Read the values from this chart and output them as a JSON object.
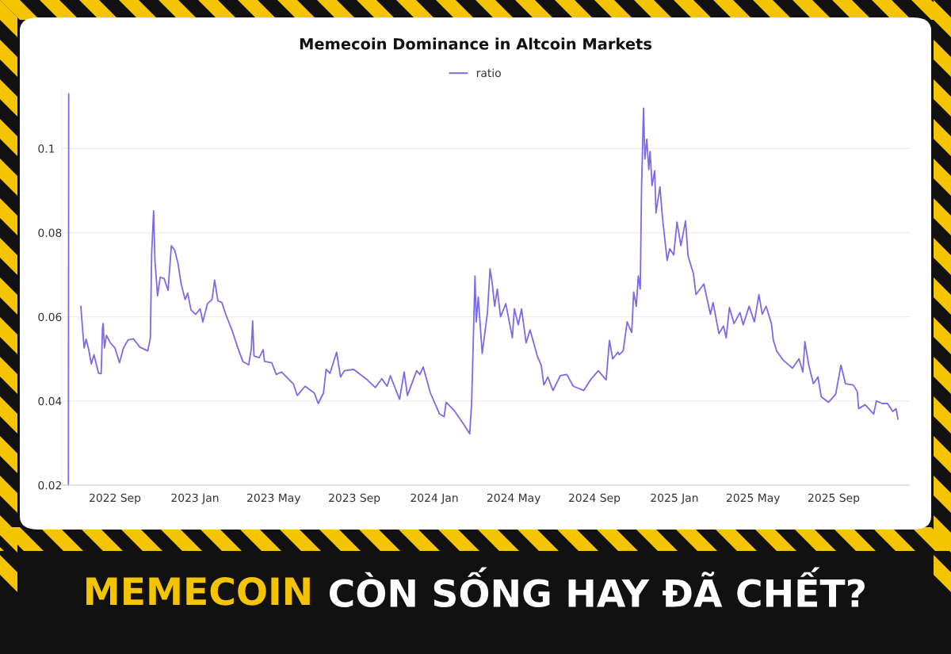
{
  "chart_data": {
    "type": "line",
    "title": "Memecoin Dominance in Altcoin Markets",
    "annotations": [
      "MEMECOIN",
      "CÒN SỐNG HAY ĐÃ CHẾT?"
    ],
    "x": [
      "2022-06-22T00:00",
      "2022-06-22T12:00",
      "2022-07-01",
      "2022-07-11",
      "2022-07-13",
      "2022-07-16",
      "2022-07-19",
      "2022-07-23",
      "2022-07-27",
      "2022-07-31",
      "2022-08-07",
      "2022-08-11",
      "2022-08-13",
      "2022-08-14",
      "2022-08-16",
      "2022-08-19",
      "2022-08-25",
      "2022-09-01",
      "2022-09-08",
      "2022-09-14",
      "2022-09-21",
      "2022-09-29",
      "2022-10-09",
      "2022-10-21",
      "2022-10-25",
      "2022-10-27",
      "2022-10-30",
      "2022-11-01",
      "2022-11-05",
      "2022-11-09",
      "2022-11-15",
      "2022-11-21",
      "2022-11-26",
      "2022-12-01",
      "2022-12-06",
      "2022-12-11",
      "2022-12-17",
      "2022-12-21",
      "2022-12-26",
      "2023-01-02",
      "2023-01-09",
      "2023-01-13",
      "2023-01-20",
      "2023-01-27",
      "2023-01-31",
      "2023-02-05",
      "2023-02-11",
      "2023-02-17",
      "2023-02-27",
      "2023-03-07",
      "2023-03-15",
      "2023-03-24",
      "2023-03-28",
      "2023-03-30",
      "2023-04-01",
      "2023-04-09",
      "2023-04-15",
      "2023-04-17",
      "2023-04-28",
      "2023-05-05",
      "2023-05-13",
      "2023-05-23",
      "2023-05-31",
      "2023-06-06",
      "2023-06-18",
      "2023-07-02",
      "2023-07-08",
      "2023-07-16",
      "2023-07-20",
      "2023-07-26",
      "2023-08-05",
      "2023-08-11",
      "2023-08-17",
      "2023-08-31",
      "2023-09-21",
      "2023-10-03",
      "2023-10-13",
      "2023-10-21",
      "2023-10-26",
      "2023-11-09",
      "2023-11-16",
      "2023-11-21",
      "2023-12-05",
      "2023-12-10",
      "2023-12-15",
      "2023-12-26",
      "2024-01-09",
      "2024-01-16",
      "2024-01-19",
      "2024-01-31",
      "2024-02-15",
      "2024-02-24",
      "2024-02-27",
      "2024-03-03",
      "2024-03-05",
      "2024-03-08",
      "2024-03-14",
      "2024-03-22",
      "2024-03-26",
      "2024-03-29",
      "2024-04-02",
      "2024-04-06",
      "2024-04-11",
      "2024-04-19",
      "2024-04-29",
      "2024-05-02",
      "2024-05-08",
      "2024-05-13",
      "2024-05-20",
      "2024-05-26",
      "2024-06-06",
      "2024-06-12",
      "2024-06-16",
      "2024-06-22",
      "2024-06-30",
      "2024-07-11",
      "2024-07-21",
      "2024-07-31",
      "2024-08-16",
      "2024-08-26",
      "2024-09-07",
      "2024-09-19",
      "2024-09-24",
      "2024-09-29",
      "2024-10-07",
      "2024-10-09",
      "2024-10-15",
      "2024-10-21",
      "2024-10-28",
      "2024-10-31",
      "2024-11-04",
      "2024-11-07",
      "2024-11-10",
      "2024-11-12",
      "2024-11-15",
      "2024-11-17",
      "2024-11-20",
      "2024-11-23",
      "2024-11-25",
      "2024-11-28",
      "2024-12-02",
      "2024-12-04",
      "2024-12-10",
      "2024-12-14",
      "2024-12-21",
      "2024-12-25",
      "2024-12-31",
      "2025-01-05",
      "2025-01-11",
      "2025-01-18",
      "2025-01-22",
      "2025-01-30",
      "2025-02-03",
      "2025-02-15",
      "2025-02-25",
      "2025-03-01",
      "2025-03-10",
      "2025-03-17",
      "2025-03-21",
      "2025-03-26",
      "2025-04-02",
      "2025-04-11",
      "2025-04-16",
      "2025-04-25",
      "2025-05-03",
      "2025-05-10",
      "2025-05-15",
      "2025-05-21",
      "2025-05-29",
      "2025-06-01",
      "2025-06-06",
      "2025-06-16",
      "2025-06-30",
      "2025-07-10",
      "2025-07-16",
      "2025-07-19",
      "2025-07-25",
      "2025-08-01",
      "2025-08-08",
      "2025-08-13",
      "2025-08-24",
      "2025-09-04",
      "2025-09-12",
      "2025-09-19",
      "2025-10-01",
      "2025-10-07",
      "2025-10-09",
      "2025-10-19",
      "2025-11-01",
      "2025-11-05",
      "2025-11-14",
      "2025-11-22",
      "2025-11-30",
      "2025-12-05",
      "2025-12-08"
    ],
    "series": [
      {
        "name": "ratio",
        "color": "#7b6be6",
        "values": [
          0.02,
          0.113,
          null,
          0.0625,
          0.0584,
          0.0526,
          0.0547,
          0.0522,
          0.0488,
          0.051,
          0.0466,
          0.0465,
          0.0573,
          0.0584,
          0.0526,
          0.0556,
          0.0538,
          0.0526,
          0.0491,
          0.0526,
          0.0545,
          0.0548,
          0.0528,
          0.0519,
          0.055,
          0.075,
          0.0852,
          0.0734,
          0.065,
          0.0694,
          0.0691,
          0.0663,
          0.0769,
          0.0759,
          0.0728,
          0.0678,
          0.0641,
          0.0656,
          0.0616,
          0.0606,
          0.0619,
          0.0588,
          0.0631,
          0.0641,
          0.0687,
          0.0638,
          0.0634,
          0.0606,
          0.0566,
          0.0528,
          0.0494,
          0.0486,
          0.0525,
          0.059,
          0.0507,
          0.0503,
          0.0522,
          0.0494,
          0.0491,
          0.0463,
          0.0469,
          0.0453,
          0.0441,
          0.0413,
          0.0435,
          0.0419,
          0.0394,
          0.0419,
          0.0475,
          0.0466,
          0.0516,
          0.0457,
          0.0472,
          0.0475,
          0.045,
          0.0432,
          0.0453,
          0.0435,
          0.046,
          0.0404,
          0.0469,
          0.0413,
          0.0472,
          0.0463,
          0.0481,
          0.0419,
          0.0369,
          0.0363,
          0.0397,
          0.0378,
          0.0344,
          0.0322,
          0.04,
          0.0697,
          0.0588,
          0.0647,
          0.0513,
          0.061,
          0.0714,
          0.0684,
          0.0625,
          0.0666,
          0.06,
          0.0631,
          0.055,
          0.0619,
          0.0581,
          0.0619,
          0.0538,
          0.0569,
          0.0507,
          0.0485,
          0.0438,
          0.0457,
          0.0425,
          0.046,
          0.0463,
          0.0435,
          0.0425,
          0.045,
          0.0472,
          0.045,
          0.0544,
          0.05,
          0.0516,
          0.051,
          0.0519,
          0.0588,
          0.0563,
          0.0659,
          0.0625,
          0.0697,
          0.0666,
          0.0909,
          0.1096,
          0.0975,
          0.1022,
          0.095,
          0.0993,
          0.0912,
          0.0947,
          0.0847,
          0.0909,
          0.0834,
          0.0734,
          0.0762,
          0.0747,
          0.0825,
          0.0769,
          0.0828,
          0.0744,
          0.0703,
          0.0653,
          0.0678,
          0.0606,
          0.0634,
          0.056,
          0.0578,
          0.055,
          0.0622,
          0.0584,
          0.061,
          0.0581,
          0.0625,
          0.0588,
          0.0653,
          0.0606,
          0.0625,
          0.0584,
          0.0544,
          0.0519,
          0.0497,
          0.0478,
          0.05,
          0.0469,
          0.0541,
          0.0485,
          0.0441,
          0.0457,
          0.041,
          0.0397,
          0.0416,
          0.0485,
          0.0441,
          0.0438,
          0.0422,
          0.0382,
          0.0391,
          0.0369,
          0.04,
          0.0394,
          0.0394,
          0.0375,
          0.0382,
          0.0357
        ]
      }
    ],
    "xlim": [
      "2022-06-12",
      "2025-12-26"
    ],
    "xticks": [
      {
        "value": "2022-09-01",
        "label": "2022 Sep"
      },
      {
        "value": "2023-01-01",
        "label": "2023 Jan"
      },
      {
        "value": "2023-05-01",
        "label": "2023 May"
      },
      {
        "value": "2023-09-01",
        "label": "2023 Sep"
      },
      {
        "value": "2024-01-01",
        "label": "2024 Jan"
      },
      {
        "value": "2024-05-01",
        "label": "2024 May"
      },
      {
        "value": "2024-09-01",
        "label": "2024 Sep"
      },
      {
        "value": "2025-01-01",
        "label": "2025 Jan"
      },
      {
        "value": "2025-05-01",
        "label": "2025 May"
      },
      {
        "value": "2025-09-01",
        "label": "2025 Sep"
      }
    ],
    "ylim": [
      0.02,
      0.114
    ],
    "yticks": [
      0.02,
      0.04,
      0.06,
      0.08,
      0.1
    ],
    "grid": "y",
    "legend": "top",
    "marker": "none",
    "line_style": "solid"
  }
}
